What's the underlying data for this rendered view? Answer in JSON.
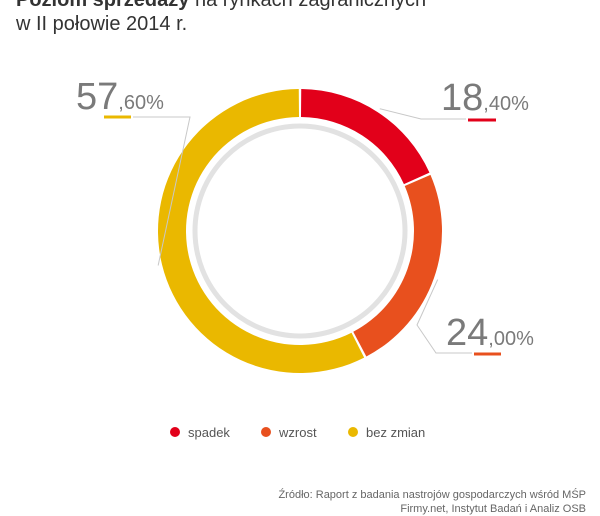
{
  "title": {
    "bold": "Poziom sprzedaży",
    "rest": " na rynkach zagranicznych",
    "line2": "w II połowie 2014 r."
  },
  "chart_data": {
    "type": "pie",
    "categories": [
      "spadek",
      "wzrost",
      "bez zmian"
    ],
    "values": [
      18.4,
      24.0,
      57.6
    ],
    "colors": [
      "#e2001a",
      "#e8501e",
      "#eab800"
    ],
    "labels": [
      {
        "int": "18",
        "dec": ",40%"
      },
      {
        "int": "24",
        "dec": ",00%"
      },
      {
        "int": "57",
        "dec": ",60%"
      }
    ],
    "legend_position": "bottom",
    "donut": true
  },
  "source": {
    "line1": "Źródło: Raport z badania nastrojów gospodarczych wśród MŚP",
    "line2": "Firmy.net, Instytut Badań i Analiz OSB"
  }
}
